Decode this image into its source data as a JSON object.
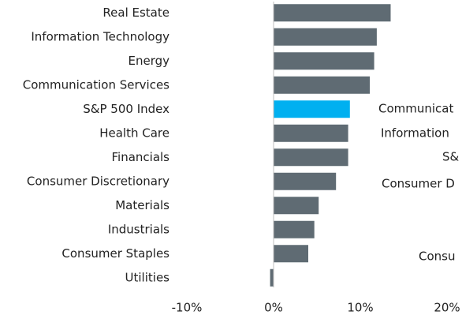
{
  "chart_data": {
    "type": "hbar",
    "categories": [
      "Real Estate",
      "Information Technology",
      "Energy",
      "Communication Services",
      "S&P 500 Index",
      "Health Care",
      "Financials",
      "Consumer Discretionary",
      "Materials",
      "Industrials",
      "Consumer Staples",
      "Utilities"
    ],
    "values": [
      13.5,
      11.9,
      11.6,
      11.1,
      8.8,
      8.6,
      8.6,
      7.2,
      5.2,
      4.7,
      4.0,
      -0.4
    ],
    "colors": [
      "#5f6b73",
      "#5f6b73",
      "#5f6b73",
      "#5f6b73",
      "#00b0f0",
      "#5f6b73",
      "#5f6b73",
      "#5f6b73",
      "#5f6b73",
      "#5f6b73",
      "#5f6b73",
      "#5f6b73"
    ],
    "xlim": [
      -10,
      20
    ],
    "xticks": [
      {
        "value": -10,
        "label": "-10%"
      },
      {
        "value": 0,
        "label": "0%"
      },
      {
        "value": 10,
        "label": "10%"
      },
      {
        "value": 20,
        "label": "20%"
      }
    ],
    "annotations": [
      "Communicat",
      "Information",
      "S&",
      "Consumer D",
      "Consu"
    ]
  }
}
